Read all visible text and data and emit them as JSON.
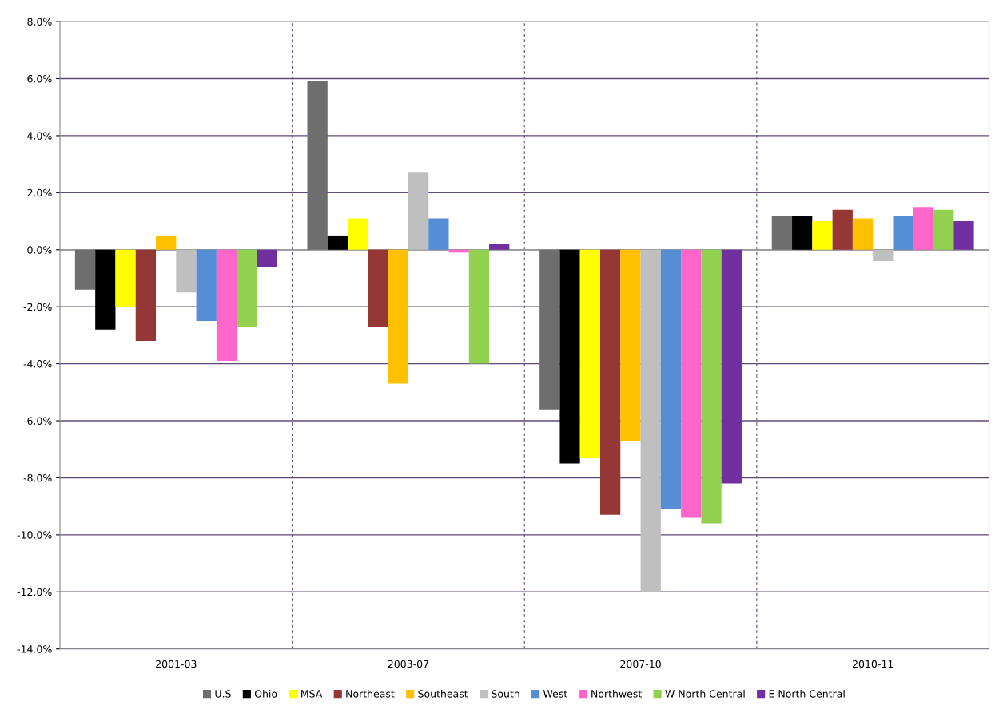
{
  "chart_data": {
    "type": "bar",
    "categories": [
      "2001-03",
      "2003-07",
      "2007-10",
      "2010-11"
    ],
    "series": [
      {
        "name": "U.S",
        "color": "#6e6e6e",
        "values": [
          -1.4,
          5.9,
          -5.6,
          1.2
        ]
      },
      {
        "name": "Ohio",
        "color": "#000000",
        "values": [
          -2.8,
          0.5,
          -7.5,
          1.2
        ]
      },
      {
        "name": "MSA",
        "color": "#ffff00",
        "values": [
          -2.0,
          1.1,
          -7.3,
          1.0
        ]
      },
      {
        "name": "Northeast",
        "color": "#953735",
        "values": [
          -3.2,
          -2.7,
          -9.3,
          1.4
        ]
      },
      {
        "name": "Southeast",
        "color": "#ffc000",
        "values": [
          0.5,
          -4.7,
          -6.7,
          1.1
        ]
      },
      {
        "name": "South",
        "color": "#bfbfbf",
        "values": [
          -1.5,
          2.7,
          -12.0,
          -0.4
        ]
      },
      {
        "name": "West",
        "color": "#558ed5",
        "values": [
          -2.5,
          1.1,
          -9.1,
          1.2
        ]
      },
      {
        "name": "Northwest",
        "color": "#ff66cc",
        "values": [
          -3.9,
          -0.1,
          -9.4,
          1.5
        ]
      },
      {
        "name": "W North Central",
        "color": "#92d050",
        "values": [
          -2.7,
          -4.0,
          -9.6,
          1.4
        ]
      },
      {
        "name": "E North Central",
        "color": "#7030a0",
        "values": [
          -0.6,
          0.2,
          -8.2,
          1.0
        ]
      }
    ],
    "ylim": [
      -14,
      8
    ],
    "yticks": [
      {
        "value": -14,
        "label": "-14.0%"
      },
      {
        "value": -12,
        "label": "-12.0%"
      },
      {
        "value": -10,
        "label": "-10.0%"
      },
      {
        "value": -8,
        "label": "-8.0%"
      },
      {
        "value": -6,
        "label": "-6.0%"
      },
      {
        "value": -4,
        "label": "-4.0%"
      },
      {
        "value": -2,
        "label": "-2.0%"
      },
      {
        "value": 0,
        "label": "0.0%"
      },
      {
        "value": 2,
        "label": "2.0%"
      },
      {
        "value": 4,
        "label": "4.0%"
      },
      {
        "value": 6,
        "label": "6.0%"
      },
      {
        "value": 8,
        "label": "8.0%"
      }
    ],
    "grid": true,
    "legend": "bottom"
  }
}
